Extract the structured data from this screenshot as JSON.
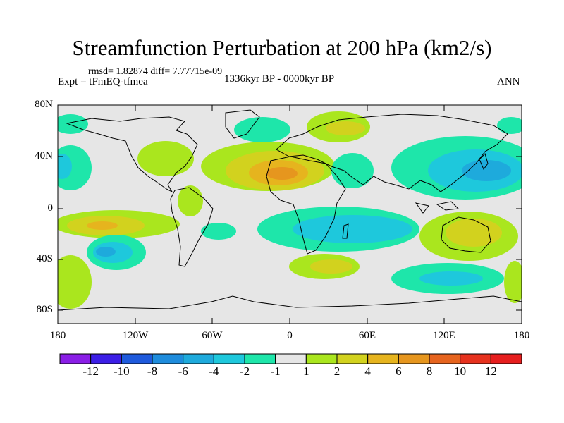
{
  "title": "Streamfunction Perturbation at 200 hPa (km2/s)",
  "stats": "rmsd= 1.82874  diff= 7.77715e-09",
  "experiment": "Expt = tFmEQ-tfmea",
  "period": "1336kyr BP - 0000kyr BP",
  "season": "ANN",
  "lat_ticks": [
    "80N",
    "40N",
    "0",
    "40S",
    "80S"
  ],
  "lon_ticks": [
    "180",
    "120W",
    "60W",
    "0",
    "60E",
    "120E",
    "180"
  ],
  "colorbar": {
    "labels": [
      "-12",
      "-10",
      "-8",
      "-6",
      "-4",
      "-2",
      "-1",
      "1",
      "2",
      "4",
      "6",
      "8",
      "10",
      "12"
    ],
    "colors": [
      "#8a1ee6",
      "#3c1ee6",
      "#1e5adc",
      "#1e8cdc",
      "#1eaadc",
      "#1ec8dc",
      "#1ee6aa",
      "#e6e6e6",
      "#aae61e",
      "#d2d21e",
      "#e6b41e",
      "#e6961e",
      "#e6641e",
      "#e6321e",
      "#e61e1e"
    ]
  },
  "icons": {
    "map": "world-map-icon"
  }
}
